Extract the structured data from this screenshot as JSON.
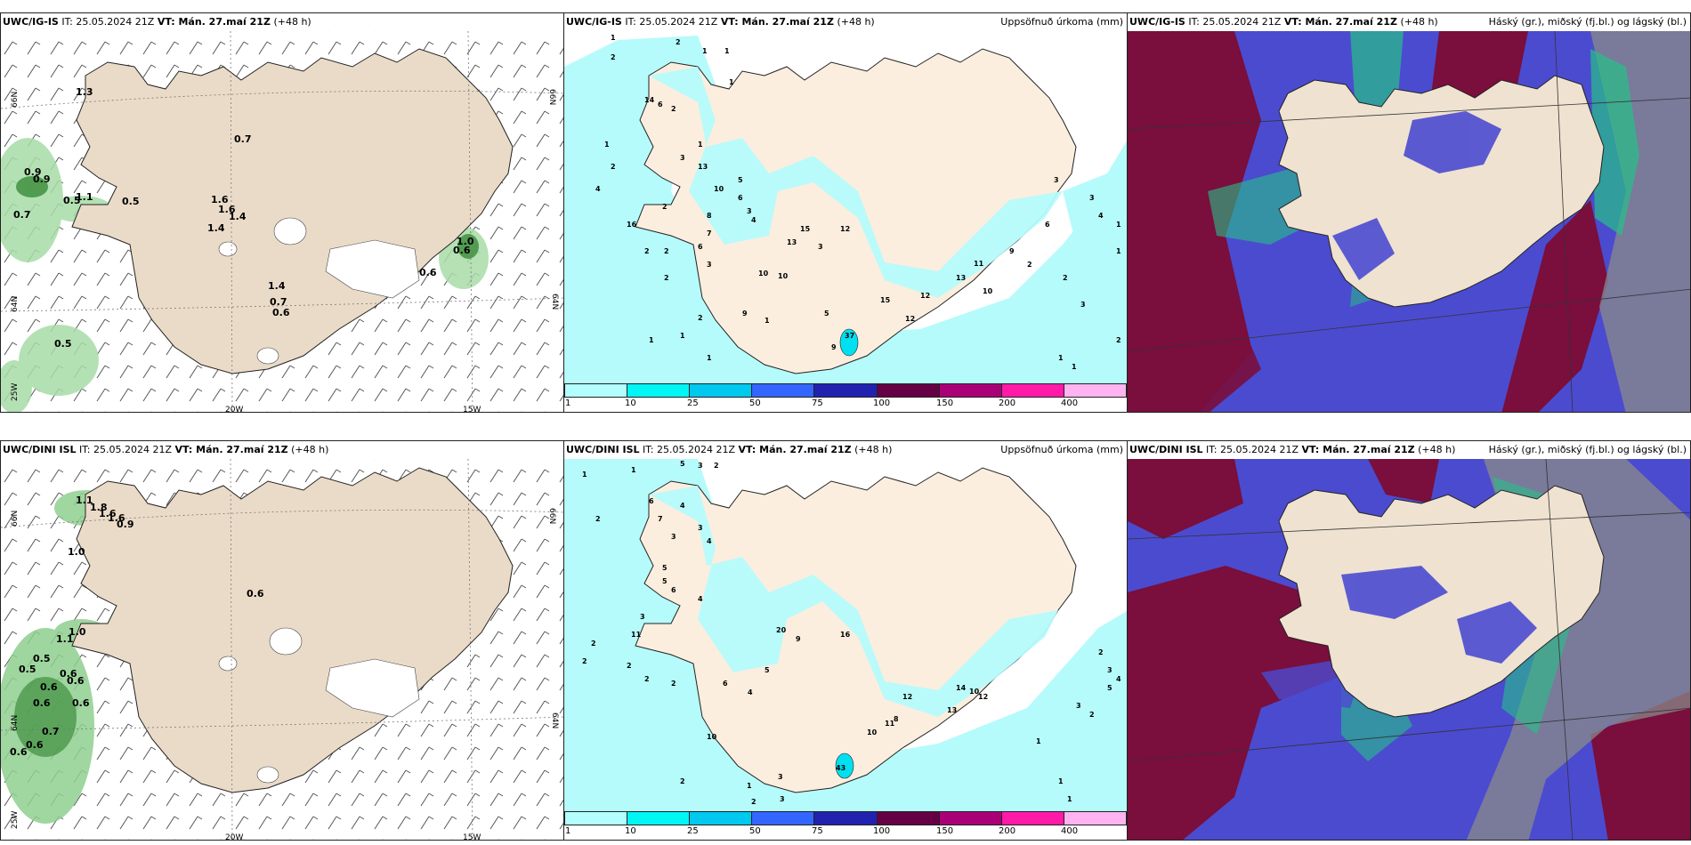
{
  "run_info": "IT: 25.05.2024 21Z",
  "valid_time": "VT: Mán. 27.maí 21Z",
  "lead": "(+48 h)",
  "rows": [
    {
      "model": "UWC/IG-IS"
    },
    {
      "model": "UWC/DINI ISL"
    }
  ],
  "precip_title": "Uppsöfnuð úrkoma (mm)",
  "cloud_title": "Háský (gr.), miðský (fj.bl.) og lágský (bl.)",
  "grid_labels": {
    "lat66": "66N",
    "lat64": "64N",
    "lon25": "25W",
    "lon20": "20W",
    "lon15": "15W"
  },
  "colorbar": {
    "ticks": [
      "1",
      "10",
      "25",
      "50",
      "75",
      "100",
      "150",
      "200",
      "400"
    ],
    "colors": [
      "#b3ffff",
      "#00f5f5",
      "#00c8ee",
      "#3366ff",
      "#2222b0",
      "#660044",
      "#aa0077",
      "#ff1aa8",
      "#ffb3f0"
    ]
  },
  "colors": {
    "land": "#eadbc8",
    "land_precip": "#fbeedf",
    "sea_precip": "#b5fbfb",
    "cloud_high": "#8a8a8a",
    "cloud_mid": "#3d3dcf",
    "cloud_low": "#7a0e3c",
    "gust_green": "#8fd88f"
  },
  "wind_values_top": [
    "1.3",
    "0.7",
    "0.9",
    "0.9",
    "0.5",
    "1.1",
    "0.5",
    "0.7",
    "1.6",
    "1.6",
    "1.4",
    "1.4",
    "1.0",
    "0.6",
    "0.6",
    "1.4",
    "0.7",
    "0.6",
    "0.5"
  ],
  "wind_values_bottom": [
    "1.1",
    "1.8",
    "1.6",
    "1.6",
    "0.9",
    "1.0",
    "0.6",
    "1.0",
    "1.1",
    "0.5",
    "0.5",
    "0.6",
    "0.6",
    "0.6",
    "0.6",
    "0.6",
    "0.7",
    "0.6",
    "0.6"
  ],
  "precip_values_top": [
    "1",
    "2",
    "1",
    "1",
    "2",
    "1",
    "2",
    "1",
    "4",
    "14",
    "6",
    "2",
    "1",
    "3",
    "2",
    "13",
    "10",
    "5",
    "6",
    "3",
    "4",
    "8",
    "16",
    "7",
    "6",
    "15",
    "12",
    "13",
    "3",
    "2",
    "2",
    "3",
    "2",
    "10",
    "10",
    "9",
    "5",
    "1",
    "2",
    "1",
    "1",
    "37",
    "9",
    "15",
    "12",
    "13",
    "12",
    "11",
    "10",
    "9",
    "6",
    "3",
    "3",
    "4",
    "2",
    "2",
    "3",
    "2",
    "1",
    "1",
    "1",
    "1",
    "1"
  ],
  "precip_values_bottom": [
    "1",
    "5",
    "3",
    "2",
    "1",
    "6",
    "4",
    "3",
    "2",
    "4",
    "3",
    "7",
    "5",
    "6",
    "5",
    "4",
    "3",
    "11",
    "2",
    "20",
    "9",
    "16",
    "2",
    "2",
    "2",
    "5",
    "6",
    "4",
    "10",
    "12",
    "11",
    "14",
    "10",
    "12",
    "13",
    "10",
    "8",
    "43",
    "2",
    "3",
    "1",
    "2",
    "3",
    "2",
    "1",
    "1",
    "2",
    "3",
    "4",
    "5",
    "3",
    "2",
    "1"
  ]
}
